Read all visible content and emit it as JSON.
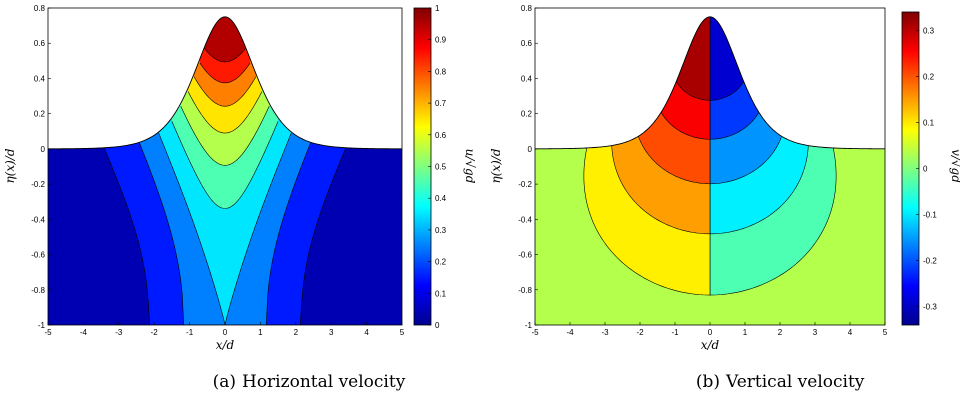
{
  "chart_data": [
    {
      "type": "heatmap",
      "subtype": "filled-contour",
      "panel_label": "(a)",
      "caption": "Horizontal velocity",
      "xlabel": "x/d",
      "ylabel": "η(x)/d",
      "colorbar_label": "u/√gd",
      "xlim": [
        -5,
        5
      ],
      "ylim": [
        -1,
        0.8
      ],
      "xticks": [
        -5,
        -4,
        -3,
        -2,
        -1,
        0,
        1,
        2,
        3,
        4,
        5
      ],
      "yticks": [
        -1,
        -0.8,
        -0.6,
        -0.4,
        -0.2,
        0,
        0.2,
        0.4,
        0.6,
        0.8
      ],
      "colorbar_range": [
        0,
        1
      ],
      "colorbar_ticks": [
        0,
        0.1,
        0.2,
        0.3,
        0.4,
        0.5,
        0.6,
        0.7,
        0.8,
        0.9,
        1
      ],
      "free_surface_crest": 0.75,
      "colormap": "jet"
    },
    {
      "type": "heatmap",
      "subtype": "filled-contour",
      "panel_label": "(b)",
      "caption": "Vertical velocity",
      "xlabel": "x/d",
      "ylabel": "η(x)/d",
      "colorbar_label": "v/√gd",
      "xlim": [
        -5,
        5
      ],
      "ylim": [
        -1,
        0.8
      ],
      "xticks": [
        -5,
        -4,
        -3,
        -2,
        -1,
        0,
        1,
        2,
        3,
        4,
        5
      ],
      "yticks": [
        -1,
        -0.8,
        -0.6,
        -0.4,
        -0.2,
        0,
        0.2,
        0.4,
        0.6,
        0.8
      ],
      "colorbar_range": [
        -0.34,
        0.34
      ],
      "colorbar_ticks": [
        -0.3,
        -0.2,
        -0.1,
        0,
        0.1,
        0.2,
        0.3
      ],
      "free_surface_crest": 0.75,
      "colormap": "jet"
    }
  ]
}
